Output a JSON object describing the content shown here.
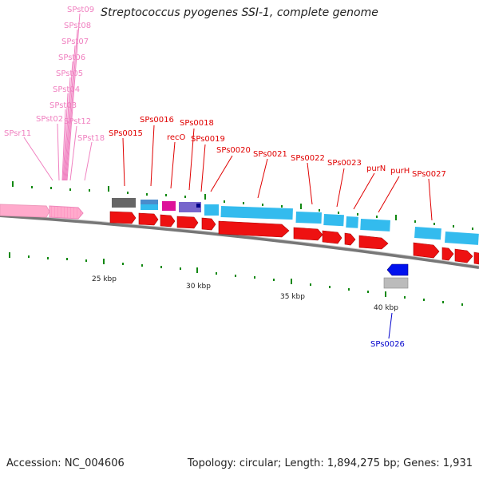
{
  "title": "Streptococcus pyogenes SSI-1, complete genome",
  "footer": {
    "accession_label": "Accession: NC_004606",
    "summary": "Topology: circular; Length: 1,894,275 bp; Genes: 1,931"
  },
  "scale_labels": [
    "25 kbp",
    "30 kbp",
    "35 kbp",
    "40 kbp"
  ],
  "colors": {
    "backbone": "#888888",
    "rna_label": "#f080c0",
    "feature_label": "#e00000",
    "minus_label": "#0000cc",
    "tick": "#118811",
    "cds": "#ee1111",
    "gene_cyan": "#33bbee",
    "rrna": "#ffaacc"
  },
  "rna_labels": [
    "SPst09",
    "SPst08",
    "SPst07",
    "SPst06",
    "SPst05",
    "SPst04",
    "SPst03",
    "SPst02",
    "SPst12",
    "SPsr11",
    "SPst18"
  ],
  "gene_labels": [
    "SPs0015",
    "SPs0016",
    "recO",
    "SPs0018",
    "SPs0019",
    "SPs0020",
    "SPs0021",
    "SPs0022",
    "SPs0023",
    "purN",
    "purH",
    "SPs0027"
  ],
  "minus_labels": [
    "SPs0026"
  ]
}
